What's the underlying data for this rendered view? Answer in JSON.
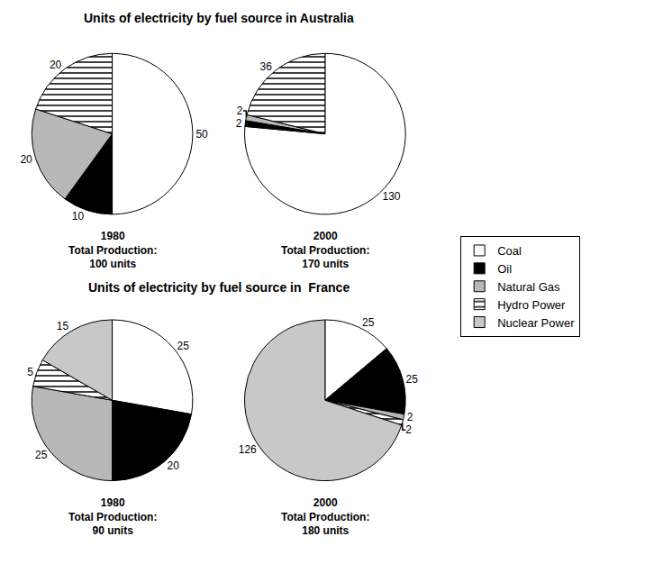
{
  "chart_data": [
    {
      "type": "pie",
      "title": "Units of electricity by fuel source in Australia",
      "categories": [
        "Coal",
        "Oil",
        "Natural Gas",
        "Hydro Power"
      ],
      "values": [
        50,
        10,
        20,
        20
      ],
      "colors": [
        "white",
        "black",
        "#b8b8b8",
        "white"
      ],
      "data_labels": true,
      "legend": "right",
      "annotations": [
        "1980",
        "Total Production:",
        "100 units"
      ]
    },
    {
      "type": "pie",
      "categories": [
        "Coal",
        "Oil",
        "Natural Gas",
        "Hydro Power"
      ],
      "values": [
        130,
        2,
        2,
        36
      ],
      "colors": [
        "white",
        "black",
        "#b8b8b8",
        "white"
      ],
      "data_labels": true,
      "legend": "right",
      "annotations": [
        "2000",
        "Total Production:",
        "170 units"
      ]
    },
    {
      "type": "pie",
      "title": "Units of electricity by fuel source in  France",
      "categories": [
        "Coal",
        "Oil",
        "Natural Gas",
        "Hydro Power",
        "Nuclear Power"
      ],
      "values": [
        25,
        20,
        25,
        5,
        15
      ],
      "colors": [
        "white",
        "black",
        "#b8b8b8",
        "white",
        "#c8c8c8"
      ],
      "data_labels": true,
      "legend": "right",
      "annotations": [
        "1980",
        "Total Production:",
        "90 units"
      ]
    },
    {
      "type": "pie",
      "categories": [
        "Coal",
        "Oil",
        "Natural Gas",
        "Hydro Power",
        "Nuclear Power"
      ],
      "values": [
        25,
        25,
        2,
        2,
        126
      ],
      "colors": [
        "white",
        "black",
        "#b8b8b8",
        "white",
        "#c8c8c8"
      ],
      "data_labels": true,
      "legend": "right",
      "annotations": [
        "2000",
        "Total Production:",
        "180 units"
      ]
    }
  ]
}
